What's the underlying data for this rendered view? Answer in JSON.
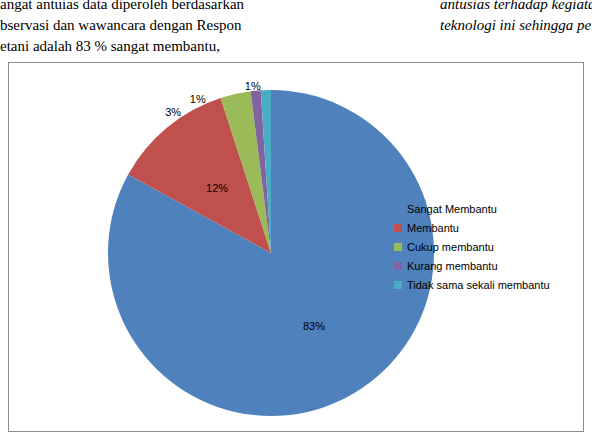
{
  "page_text": {
    "left": [
      "angat antuias data diperoleh berdasarkan",
      "bservasi dan wawancara dengan Respon",
      "etani adalah 83 %  sangat membantu,"
    ],
    "right": [
      "antusias terhadap kegiatan",
      "teknologi ini sehingga perlu dila"
    ]
  },
  "chart_data": {
    "type": "pie",
    "categories": [
      "Sangat Membantu",
      "Membantu",
      "Cukup membantu",
      "Kurang membantu",
      "Tidak sama sekali membantu"
    ],
    "values": [
      83,
      12,
      3,
      1,
      1
    ],
    "value_labels": [
      "83%",
      "12%",
      "3%",
      "1%",
      "1%"
    ],
    "colors": [
      "#4f81bd",
      "#c0504d",
      "#9bbb59",
      "#8064a2",
      "#4bacc6"
    ],
    "data_labels": true,
    "legend": "right"
  }
}
